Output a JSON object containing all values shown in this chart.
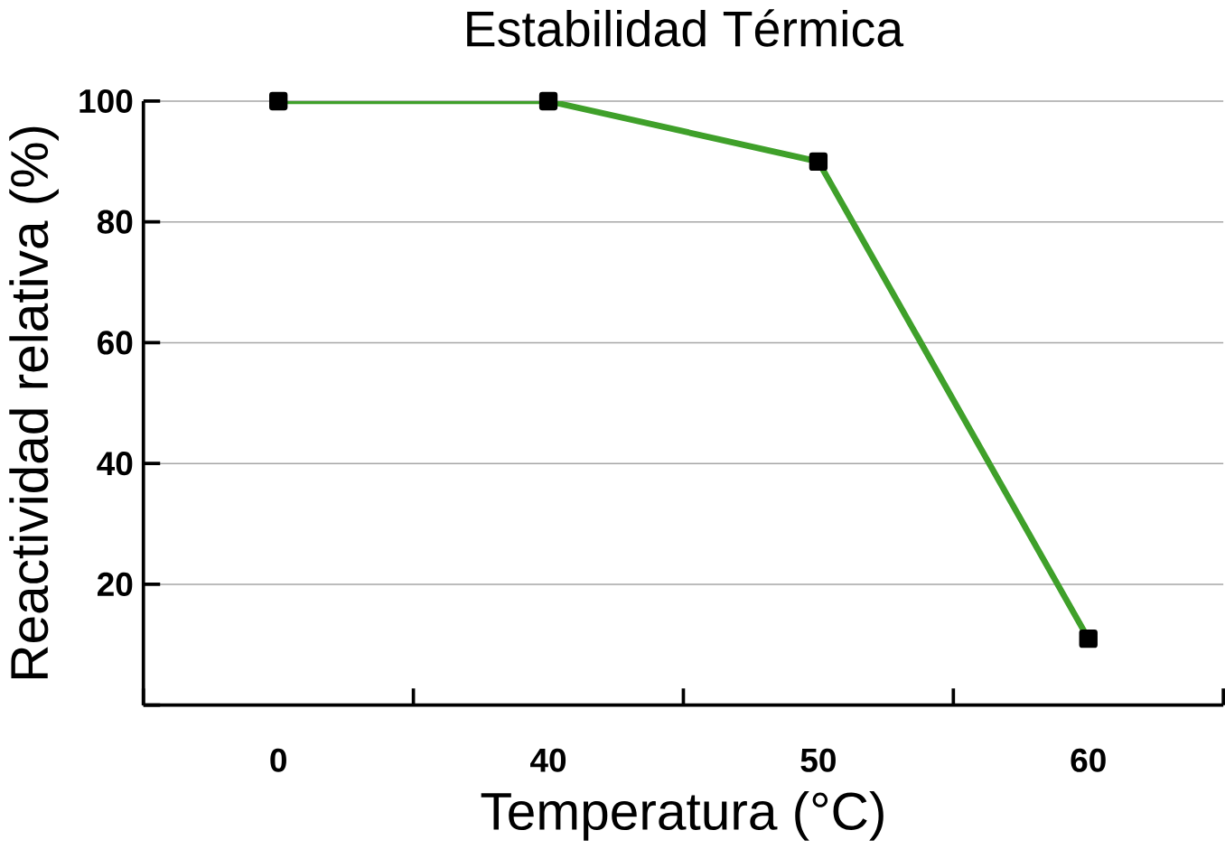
{
  "chart_data": {
    "type": "line",
    "title": "Estabilidad Térmica",
    "xlabel": "Temperatura (°C)",
    "ylabel": "Reactividad relativa (%)",
    "categories": [
      "0",
      "40",
      "50",
      "60"
    ],
    "series": [
      {
        "color": "#3fa02a",
        "values": [
          100,
          100,
          90,
          11
        ]
      }
    ],
    "ylim": [
      0,
      100
    ],
    "yticks": [
      {
        "value": 0,
        "label": null
      },
      20,
      40,
      60,
      80,
      100
    ],
    "grid": "y",
    "marker": "square",
    "line_style": "solid",
    "legend": false
  }
}
